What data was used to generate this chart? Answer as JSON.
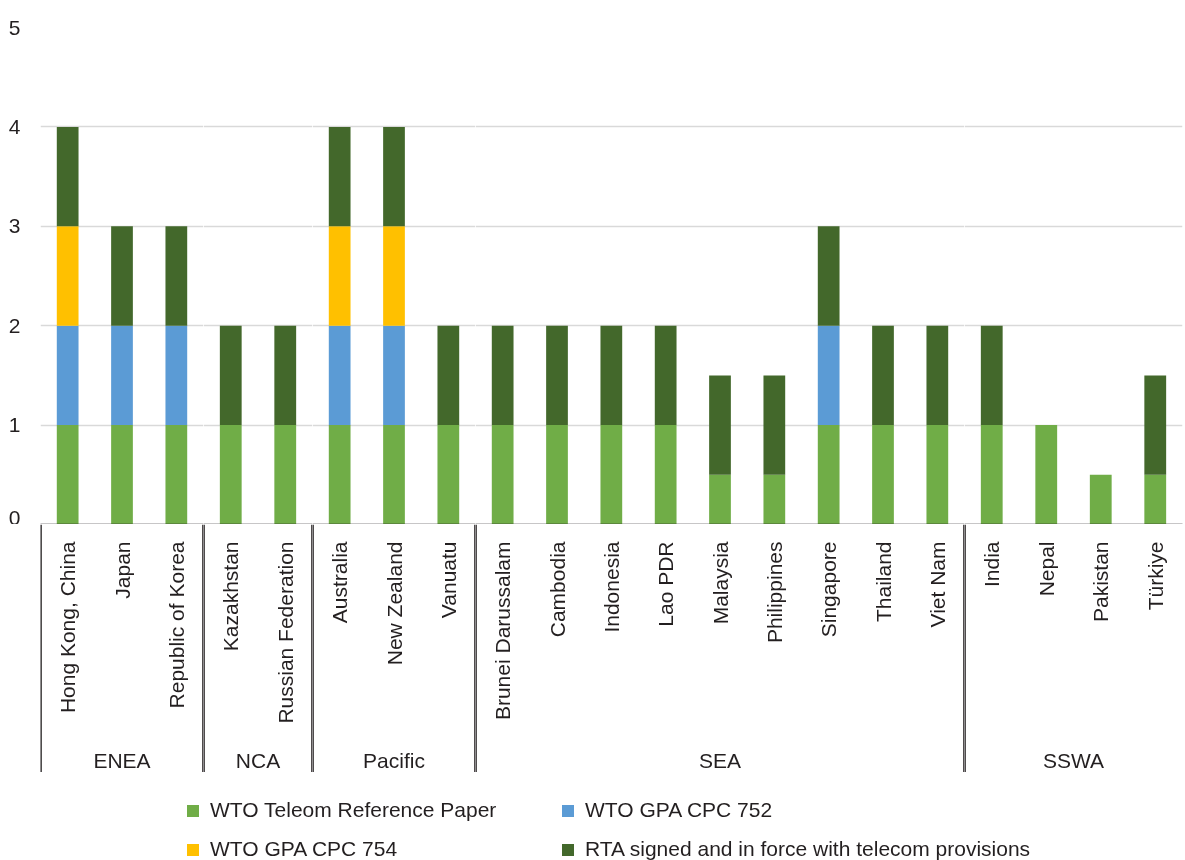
{
  "chart_data": [
    {
      "type": "bar",
      "stacked": true,
      "xlabel": "ENEA",
      "categories": [
        "Hong Kong, China",
        "Japan",
        "Republic of Korea"
      ],
      "series": [
        {
          "name": "WTO Teleom Reference Paper",
          "color": "#70ad47",
          "values": [
            1,
            1,
            1
          ]
        },
        {
          "name": "WTO GPA CPC 752",
          "color": "#5b9bd5",
          "values": [
            1,
            1,
            1
          ]
        },
        {
          "name": "WTO GPA CPC 754",
          "color": "#ffc000",
          "values": [
            1,
            0,
            0
          ]
        },
        {
          "name": "RTA signed and in force with telecom provisions",
          "color": "#43682b",
          "values": [
            1,
            1,
            1
          ]
        }
      ],
      "ylim": [
        0,
        5
      ],
      "yticks": [
        0,
        1,
        2,
        3,
        4,
        5
      ],
      "grid": "y",
      "legend": "bottom"
    },
    {
      "type": "bar",
      "stacked": true,
      "xlabel": "NCA",
      "categories": [
        "Kazakhstan",
        "Russian Federation"
      ],
      "series": [
        {
          "color": "#70ad47",
          "values": [
            1,
            1
          ]
        },
        {
          "color": "#5b9bd5",
          "values": [
            0,
            0
          ]
        },
        {
          "color": "#ffc000",
          "values": [
            0,
            0
          ]
        },
        {
          "color": "#43682b",
          "values": [
            1,
            1
          ]
        }
      ],
      "ylim": [
        0,
        5
      ],
      "yticks": [
        0,
        1,
        2,
        3,
        4,
        5
      ],
      "grid": "y",
      "tick_labels": "x"
    },
    {
      "type": "bar",
      "stacked": true,
      "xlabel": "Pacific",
      "categories": [
        "Australia",
        "New Zealand",
        "Vanuatu"
      ],
      "series": [
        {
          "color": "#70ad47",
          "values": [
            1,
            1,
            1
          ]
        },
        {
          "color": "#5b9bd5",
          "values": [
            1,
            1,
            0
          ]
        },
        {
          "color": "#ffc000",
          "values": [
            1,
            1,
            0
          ]
        },
        {
          "color": "#43682b",
          "values": [
            1,
            1,
            1
          ]
        }
      ],
      "ylim": [
        0,
        5
      ],
      "yticks": [
        0,
        1,
        2,
        3,
        4,
        5
      ],
      "grid": "y",
      "tick_labels": "x"
    },
    {
      "type": "bar",
      "stacked": true,
      "xlabel": "SEA",
      "categories": [
        "Brunei Darussalam",
        "Cambodia",
        "Indonesia",
        "Lao PDR",
        "Malaysia",
        "Philippines",
        "Singapore",
        "Thailand",
        "Viet Nam"
      ],
      "series": [
        {
          "color": "#70ad47",
          "values": [
            1,
            1,
            1,
            1,
            0.5,
            0.5,
            1,
            1,
            1
          ]
        },
        {
          "color": "#5b9bd5",
          "values": [
            0,
            0,
            0,
            0,
            0,
            0,
            1,
            0,
            0
          ]
        },
        {
          "color": "#ffc000",
          "values": [
            0,
            0,
            0,
            0,
            0,
            0,
            0,
            0,
            0
          ]
        },
        {
          "color": "#43682b",
          "values": [
            1,
            1,
            1,
            1,
            1,
            1,
            1,
            1,
            1
          ]
        }
      ],
      "ylim": [
        0,
        5
      ],
      "yticks": [
        0,
        1,
        2,
        3,
        4,
        5
      ],
      "grid": "y",
      "tick_labels": "x"
    },
    {
      "type": "bar",
      "stacked": true,
      "xlabel": "SSWA",
      "categories": [
        "India",
        "Nepal",
        "Pakistan",
        "Türkiye"
      ],
      "series": [
        {
          "color": "#70ad47",
          "values": [
            1,
            1,
            0.5,
            0.5
          ]
        },
        {
          "color": "#5b9bd5",
          "values": [
            0,
            0,
            0,
            0
          ]
        },
        {
          "color": "#ffc000",
          "values": [
            0,
            0,
            0,
            0
          ]
        },
        {
          "color": "#43682b",
          "values": [
            1,
            0,
            0,
            1
          ]
        }
      ],
      "ylim": [
        0,
        5
      ],
      "yticks": [
        0,
        1,
        2,
        3,
        4,
        5
      ],
      "grid": "y",
      "tick_labels": "x"
    }
  ]
}
